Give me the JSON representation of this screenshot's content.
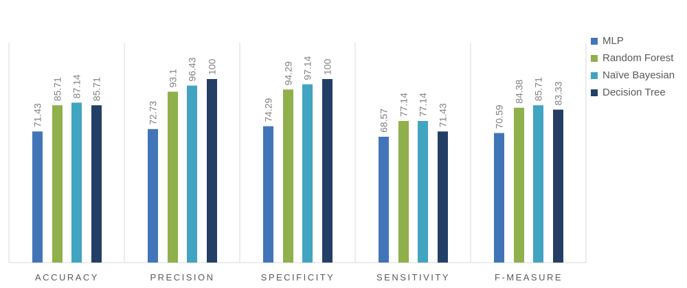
{
  "chart_data": {
    "type": "bar",
    "title": "",
    "xlabel": "",
    "ylabel": "",
    "ylim": [
      0,
      100
    ],
    "grid": false,
    "legend_placement": "right",
    "categories": [
      "ACCURACY",
      "PRECISION",
      "SPECIFICITY",
      "SENSITIVITY",
      "F-MEASURE"
    ],
    "series": [
      {
        "name": "MLP",
        "color": "#4275B8",
        "values": [
          71.43,
          72.73,
          74.29,
          68.57,
          70.59
        ]
      },
      {
        "name": "Random Forest",
        "color": "#8FB04B",
        "values": [
          85.71,
          93.1,
          94.29,
          77.14,
          84.38
        ]
      },
      {
        "name": "Naïve Bayesian",
        "color": "#41A4C0",
        "values": [
          87.14,
          96.43,
          97.14,
          77.14,
          85.71
        ]
      },
      {
        "name": "Decision Tree",
        "color": "#243F66",
        "values": [
          85.71,
          100,
          100,
          71.43,
          83.33
        ]
      }
    ]
  }
}
